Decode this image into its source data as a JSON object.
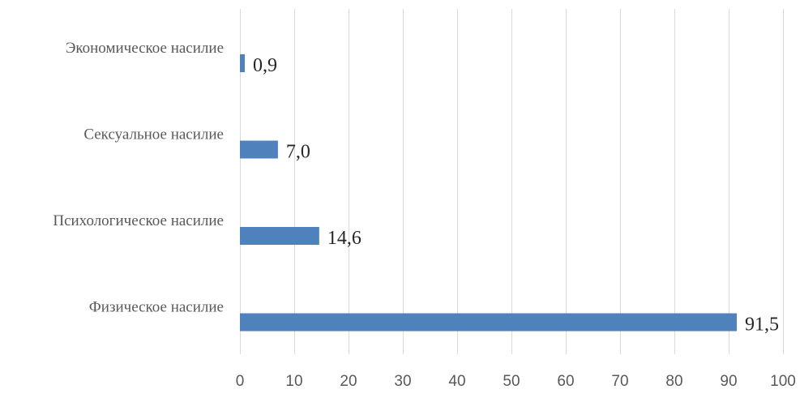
{
  "chart_data": {
    "type": "bar",
    "orientation": "horizontal",
    "categories": [
      "Экономическое насилие",
      "Сексуальное насилие",
      "Психологическое насилие",
      "Физическое насилие"
    ],
    "values": [
      0.9,
      7.0,
      14.6,
      91.5
    ],
    "value_labels": [
      "0,9",
      "7,0",
      "14,6",
      "91,5"
    ],
    "title": "",
    "xlabel": "",
    "ylabel": "",
    "xlim": [
      0,
      100
    ],
    "ticks": [
      0,
      10,
      20,
      30,
      40,
      50,
      60,
      70,
      80,
      90,
      100
    ],
    "tick_labels": [
      "0",
      "10",
      "20",
      "30",
      "40",
      "50",
      "60",
      "70",
      "80",
      "90",
      "100"
    ],
    "grid": "vertical",
    "legend": "none",
    "colors": {
      "bar": "#4f81bd",
      "grid": "#d9d9d9",
      "category_text": "#595959",
      "value_text": "#262626",
      "tick_text": "#595959"
    }
  }
}
